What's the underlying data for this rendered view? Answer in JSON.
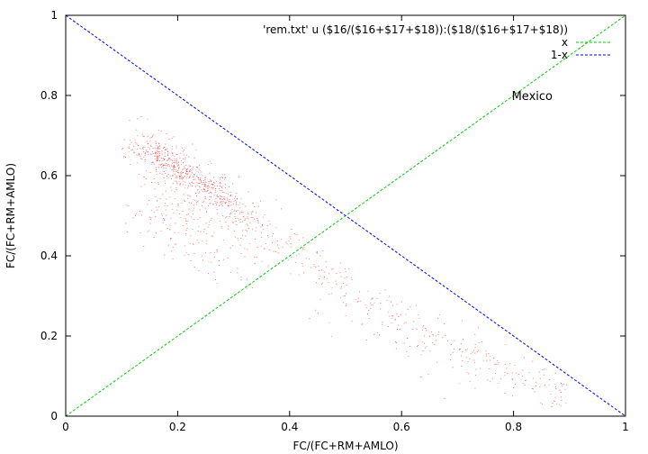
{
  "chart_data": {
    "type": "scatter",
    "title": "",
    "xlabel": "FC/(FC+RM+AMLO)",
    "ylabel": "FC/(FC+RM+AMLO)",
    "xlim": [
      0,
      1
    ],
    "ylim": [
      0,
      1
    ],
    "x_ticks": [
      "0",
      "0.2",
      "0.4",
      "0.6",
      "0.8",
      "1"
    ],
    "y_ticks": [
      "0",
      "0.2",
      "0.4",
      "0.6",
      "0.8",
      "1"
    ],
    "grid": false,
    "legend_position": "top-right",
    "annotation": {
      "text": "Mexico",
      "x": 0.8,
      "y": 0.8
    },
    "series": [
      {
        "name": "'rem.txt' u ($16/($16+$17+$18)):($18/($16+$17+$18))",
        "kind": "points",
        "color": "#ff0000",
        "approx_points": [
          [
            0.13,
            0.67
          ],
          [
            0.17,
            0.65
          ],
          [
            0.2,
            0.62
          ],
          [
            0.24,
            0.58
          ],
          [
            0.28,
            0.55
          ],
          [
            0.32,
            0.5
          ],
          [
            0.36,
            0.47
          ],
          [
            0.4,
            0.42
          ],
          [
            0.45,
            0.37
          ],
          [
            0.5,
            0.32
          ],
          [
            0.55,
            0.28
          ],
          [
            0.6,
            0.24
          ],
          [
            0.65,
            0.21
          ],
          [
            0.7,
            0.18
          ],
          [
            0.75,
            0.15
          ],
          [
            0.8,
            0.11
          ],
          [
            0.85,
            0.08
          ],
          [
            0.88,
            0.06
          ]
        ]
      },
      {
        "name": "x",
        "kind": "line",
        "color": "#00cc00",
        "points": [
          [
            0,
            0
          ],
          [
            1,
            1
          ]
        ]
      },
      {
        "name": "1-x",
        "kind": "line",
        "color": "#0000ff",
        "points": [
          [
            0,
            1
          ],
          [
            1,
            0
          ]
        ]
      }
    ]
  }
}
